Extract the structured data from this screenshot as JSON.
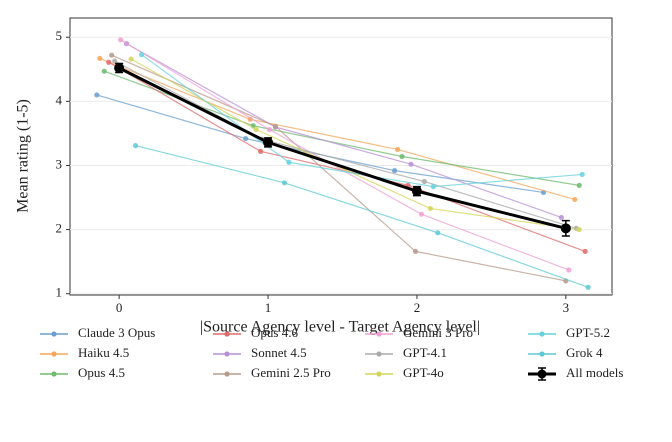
{
  "chart_data": {
    "type": "line",
    "x_label": "|Source Agency level - Target Agency level|",
    "y_label": "Mean rating (1-5)",
    "xlim": [
      -0.33,
      3.31
    ],
    "ylim": [
      0.98,
      5.3
    ],
    "xticks": [
      0,
      1,
      2,
      3
    ],
    "yticks": [
      1,
      2,
      3,
      4,
      5
    ],
    "grid": true,
    "legend": "bottom",
    "series": [
      {
        "name": "Claude 3 Opus",
        "color": "#6a9fd0",
        "x": [
          -0.15,
          0.85,
          1.85,
          2.85
        ],
        "values": [
          4.1,
          3.42,
          2.92,
          2.58
        ]
      },
      {
        "name": "Haiku 4.5",
        "color": "#f4a65a",
        "x": [
          -0.13,
          0.88,
          1.87,
          3.06
        ],
        "values": [
          4.67,
          3.72,
          3.25,
          2.47
        ]
      },
      {
        "name": "Opus 4.5",
        "color": "#6dbb6d",
        "x": [
          -0.1,
          0.9,
          1.9,
          3.09
        ],
        "values": [
          4.47,
          3.62,
          3.14,
          2.69
        ]
      },
      {
        "name": "Opus 4.6",
        "color": "#e06a6a",
        "x": [
          -0.07,
          0.95,
          1.94,
          3.13
        ],
        "values": [
          4.61,
          3.22,
          2.69,
          1.66
        ]
      },
      {
        "name": "Sonnet 4.5",
        "color": "#b98fd6",
        "x": [
          0.05,
          1.05,
          1.96,
          2.97
        ],
        "values": [
          4.9,
          3.6,
          3.02,
          2.19
        ]
      },
      {
        "name": "Gemini 2.5 Pro",
        "color": "#b89a8c",
        "x": [
          -0.05,
          1.05,
          1.99,
          3.0
        ],
        "values": [
          4.72,
          3.61,
          1.66,
          1.2
        ]
      },
      {
        "name": "Gemini 3 Pro",
        "color": "#eea0d6",
        "x": [
          0.01,
          1.01,
          2.03,
          3.02
        ],
        "values": [
          4.96,
          3.56,
          2.24,
          1.37
        ]
      },
      {
        "name": "GPT-4.1",
        "color": "#aaaaaa",
        "x": [
          -0.03,
          0.96,
          2.05,
          3.07
        ],
        "values": [
          4.63,
          3.41,
          2.75,
          2.02
        ]
      },
      {
        "name": "GPT-4o",
        "color": "#d4d45a",
        "x": [
          0.08,
          0.92,
          2.09,
          3.09
        ],
        "values": [
          4.66,
          3.56,
          2.33,
          2.0
        ]
      },
      {
        "name": "GPT-5.2",
        "color": "#65d2dc",
        "x": [
          0.15,
          1.14,
          2.11,
          3.11
        ],
        "values": [
          4.73,
          3.05,
          2.67,
          2.86
        ]
      },
      {
        "name": "Grok 4",
        "color": "#5ec9d4",
        "x": [
          0.11,
          1.11,
          2.14,
          3.15
        ],
        "values": [
          3.31,
          2.73,
          1.95,
          1.1
        ]
      },
      {
        "name": "All models",
        "color": "#000000",
        "x": [
          0,
          1,
          2,
          3
        ],
        "values": [
          4.52,
          3.36,
          2.6,
          2.02
        ],
        "errors": [
          0.07,
          0.07,
          0.07,
          0.12
        ]
      }
    ]
  }
}
